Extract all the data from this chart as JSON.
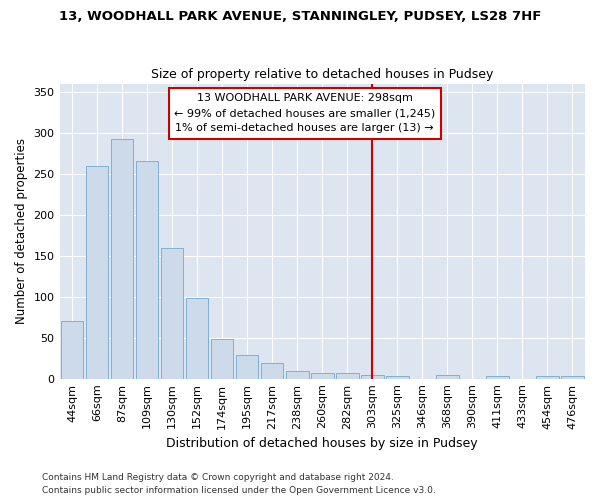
{
  "title1": "13, WOODHALL PARK AVENUE, STANNINGLEY, PUDSEY, LS28 7HF",
  "title2": "Size of property relative to detached houses in Pudsey",
  "xlabel": "Distribution of detached houses by size in Pudsey",
  "ylabel": "Number of detached properties",
  "categories": [
    "44sqm",
    "66sqm",
    "87sqm",
    "109sqm",
    "130sqm",
    "152sqm",
    "174sqm",
    "195sqm",
    "217sqm",
    "238sqm",
    "260sqm",
    "282sqm",
    "303sqm",
    "325sqm",
    "346sqm",
    "368sqm",
    "390sqm",
    "411sqm",
    "433sqm",
    "454sqm",
    "476sqm"
  ],
  "values": [
    70,
    260,
    292,
    265,
    160,
    98,
    49,
    29,
    19,
    9,
    7,
    7,
    5,
    3,
    0,
    4,
    0,
    3,
    0,
    3,
    3
  ],
  "bar_color": "#ccdaea",
  "bar_edge_color": "#7fb0d5",
  "marker_bin_index": 12,
  "annotation_line1": "13 WOODHALL PARK AVENUE: 298sqm",
  "annotation_line2": "← 99% of detached houses are smaller (1,245)",
  "annotation_line3": "1% of semi-detached houses are larger (13) →",
  "marker_color": "#cc0000",
  "ylim": [
    0,
    360
  ],
  "yticks": [
    0,
    50,
    100,
    150,
    200,
    250,
    300,
    350
  ],
  "bg_color": "#dde6f0",
  "grid_color": "#ffffff",
  "footer1": "Contains HM Land Registry data © Crown copyright and database right 2024.",
  "footer2": "Contains public sector information licensed under the Open Government Licence v3.0."
}
